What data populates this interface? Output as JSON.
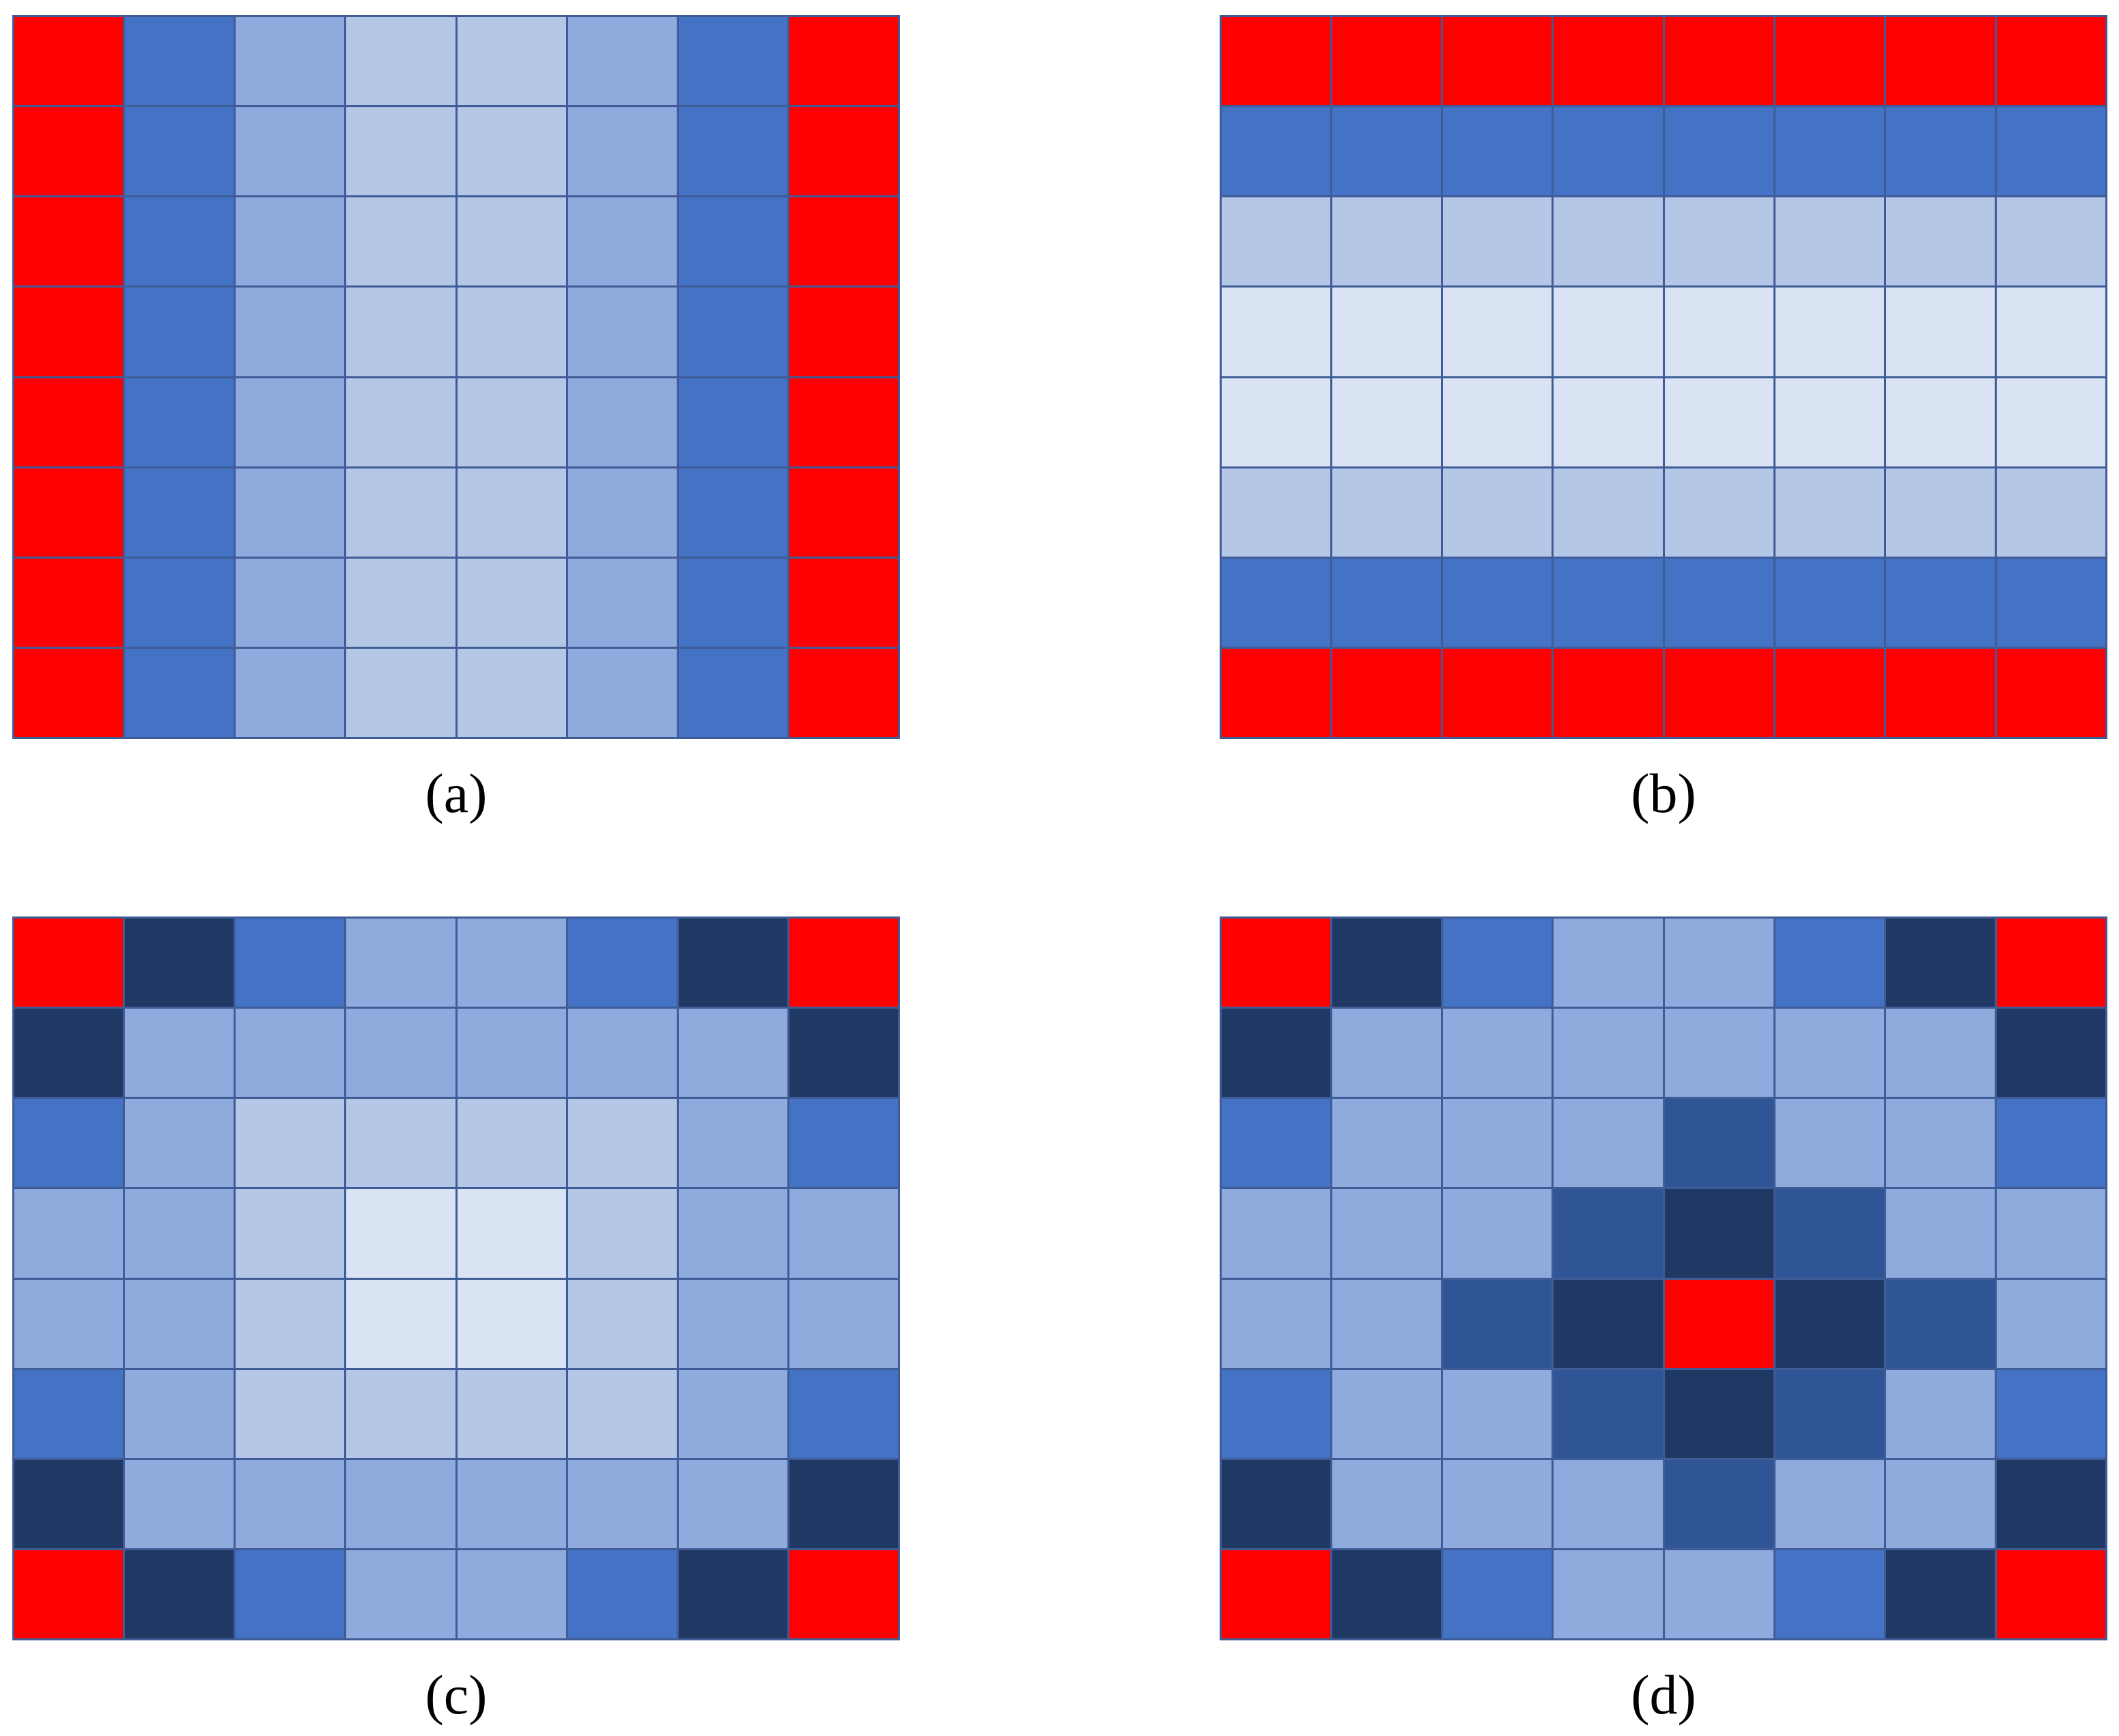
{
  "palette": {
    "R": "#ff0000",
    "B": "#4472c4",
    "M": "#8faadc",
    "L": "#b4c7e7",
    "P": "#dae3f3",
    "D": "#203864",
    "N": "#2f5597"
  },
  "panels": [
    {
      "id": "a",
      "caption": "(a)",
      "cells": [
        [
          "R",
          "B",
          "M",
          "L",
          "L",
          "M",
          "B",
          "R"
        ],
        [
          "R",
          "B",
          "M",
          "L",
          "L",
          "M",
          "B",
          "R"
        ],
        [
          "R",
          "B",
          "M",
          "L",
          "L",
          "M",
          "B",
          "R"
        ],
        [
          "R",
          "B",
          "M",
          "L",
          "L",
          "M",
          "B",
          "R"
        ],
        [
          "R",
          "B",
          "M",
          "L",
          "L",
          "M",
          "B",
          "R"
        ],
        [
          "R",
          "B",
          "M",
          "L",
          "L",
          "M",
          "B",
          "R"
        ],
        [
          "R",
          "B",
          "M",
          "L",
          "L",
          "M",
          "B",
          "R"
        ],
        [
          "R",
          "B",
          "M",
          "L",
          "L",
          "M",
          "B",
          "R"
        ]
      ]
    },
    {
      "id": "b",
      "caption": "(b)",
      "cells": [
        [
          "R",
          "R",
          "R",
          "R",
          "R",
          "R",
          "R",
          "R"
        ],
        [
          "B",
          "B",
          "B",
          "B",
          "B",
          "B",
          "B",
          "B"
        ],
        [
          "L",
          "L",
          "L",
          "L",
          "L",
          "L",
          "L",
          "L"
        ],
        [
          "P",
          "P",
          "P",
          "P",
          "P",
          "P",
          "P",
          "P"
        ],
        [
          "P",
          "P",
          "P",
          "P",
          "P",
          "P",
          "P",
          "P"
        ],
        [
          "L",
          "L",
          "L",
          "L",
          "L",
          "L",
          "L",
          "L"
        ],
        [
          "B",
          "B",
          "B",
          "B",
          "B",
          "B",
          "B",
          "B"
        ],
        [
          "R",
          "R",
          "R",
          "R",
          "R",
          "R",
          "R",
          "R"
        ]
      ]
    },
    {
      "id": "c",
      "caption": "(c)",
      "cells": [
        [
          "R",
          "D",
          "B",
          "M",
          "M",
          "B",
          "D",
          "R"
        ],
        [
          "D",
          "M",
          "M",
          "M",
          "M",
          "M",
          "M",
          "D"
        ],
        [
          "B",
          "M",
          "L",
          "L",
          "L",
          "L",
          "M",
          "B"
        ],
        [
          "M",
          "M",
          "L",
          "P",
          "P",
          "L",
          "M",
          "M"
        ],
        [
          "M",
          "M",
          "L",
          "P",
          "P",
          "L",
          "M",
          "M"
        ],
        [
          "B",
          "M",
          "L",
          "L",
          "L",
          "L",
          "M",
          "B"
        ],
        [
          "D",
          "M",
          "M",
          "M",
          "M",
          "M",
          "M",
          "D"
        ],
        [
          "R",
          "D",
          "B",
          "M",
          "M",
          "B",
          "D",
          "R"
        ]
      ]
    },
    {
      "id": "d",
      "caption": "(d)",
      "cells": [
        [
          "R",
          "D",
          "B",
          "M",
          "M",
          "B",
          "D",
          "R"
        ],
        [
          "D",
          "M",
          "M",
          "M",
          "M",
          "M",
          "M",
          "D"
        ],
        [
          "B",
          "M",
          "M",
          "M",
          "N",
          "M",
          "M",
          "B"
        ],
        [
          "M",
          "M",
          "M",
          "N",
          "D",
          "N",
          "M",
          "M"
        ],
        [
          "M",
          "M",
          "N",
          "D",
          "R",
          "D",
          "N",
          "M"
        ],
        [
          "B",
          "M",
          "M",
          "N",
          "D",
          "N",
          "M",
          "B"
        ],
        [
          "D",
          "M",
          "M",
          "M",
          "N",
          "M",
          "M",
          "D"
        ],
        [
          "R",
          "D",
          "B",
          "M",
          "M",
          "B",
          "D",
          "R"
        ]
      ]
    }
  ]
}
